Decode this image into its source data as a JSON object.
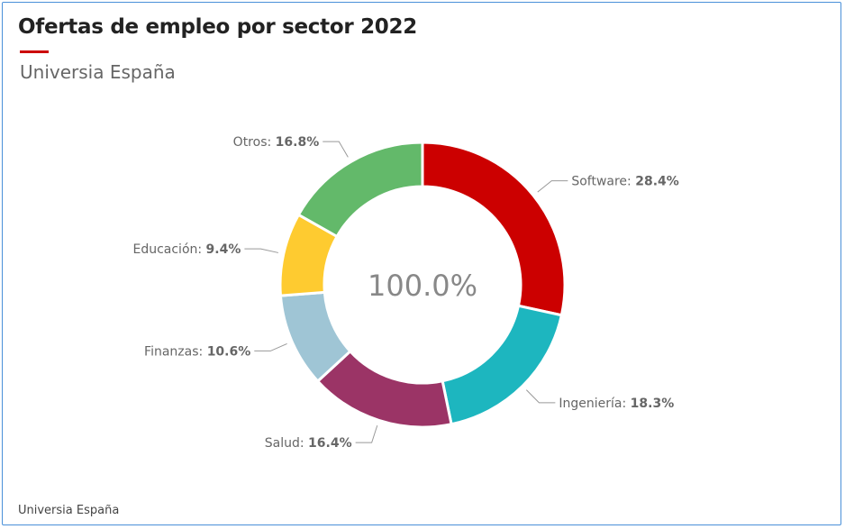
{
  "header": {
    "title": "Ofertas de empleo por sector 2022",
    "subtitle": "Universia España"
  },
  "footer": {
    "source": "Universia España"
  },
  "colors": {
    "accent": "#cc0000"
  },
  "chart_data": {
    "type": "pie",
    "variant": "donut",
    "title": "Ofertas de empleo por sector 2022",
    "subtitle": "Universia España",
    "center_label": "100.0%",
    "slices": [
      {
        "label": "Software",
        "value": 28.4,
        "value_label": "28.4%",
        "color": "#cc0000"
      },
      {
        "label": "Ingeniería",
        "value": 18.3,
        "value_label": "18.3%",
        "color": "#1db6bf"
      },
      {
        "label": "Salud",
        "value": 16.4,
        "value_label": "16.4%",
        "color": "#9b3466"
      },
      {
        "label": "Finanzas",
        "value": 10.6,
        "value_label": "10.6%",
        "color": "#9fc5d5"
      },
      {
        "label": "Educación",
        "value": 9.4,
        "value_label": "9.4%",
        "color": "#fecb30"
      },
      {
        "label": "Otros",
        "value": 16.8,
        "value_label": "16.8%",
        "color": "#63b96a"
      }
    ],
    "legend": "none",
    "labels": "outside-with-leader-lines"
  }
}
